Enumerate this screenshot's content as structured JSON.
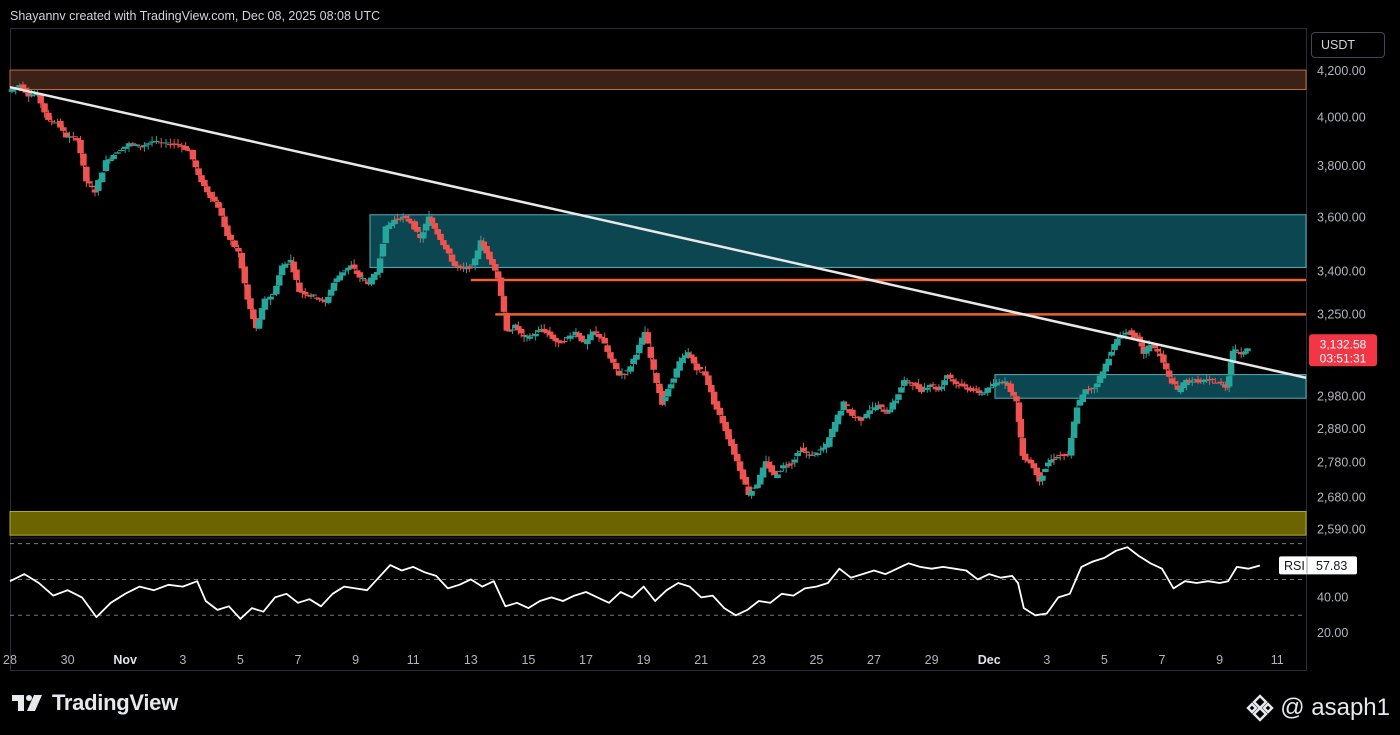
{
  "header": {
    "attribution": "Shayannv created with TradingView.com, Dec 08, 2025 08:08 UTC"
  },
  "currency": "USDT",
  "footer": {
    "brand": "TradingView",
    "handle": "@ asaph1"
  },
  "colors": {
    "bull": "#26a69a",
    "bear": "#ef5350",
    "trendline": "#e8e8e8",
    "level_line": "#f0622a",
    "zone_cyan_fill": "#0c4650",
    "zone_cyan_border": "#4fb3bf",
    "zone_brown_fill": "#3a2217",
    "zone_yellow_fill": "#6b6400",
    "price_tag": "#f23645",
    "rsi_line": "#ffffff"
  },
  "chart_data": {
    "type": "candlestick",
    "symbol_quote": "USDT",
    "y_axis": {
      "ticks": [
        "4,200.00",
        "4,000.00",
        "3,800.00",
        "3,600.00",
        "3,400.00",
        "3,250.00",
        "2,980.00",
        "2,880.00",
        "2,780.00",
        "2,680.00",
        "2,590.00"
      ],
      "tick_values": [
        4200,
        4000,
        3800,
        3600,
        3400,
        3250,
        2980,
        2880,
        2780,
        2680,
        2590
      ],
      "scale": "log",
      "range": [
        2570,
        4250
      ]
    },
    "x_axis": {
      "labels": [
        "28",
        "30",
        "Nov",
        "3",
        "5",
        "7",
        "9",
        "11",
        "13",
        "15",
        "17",
        "19",
        "21",
        "23",
        "25",
        "27",
        "29",
        "Dec",
        "3",
        "5",
        "7",
        "9",
        "11"
      ],
      "bold": [
        "Nov",
        "Dec"
      ],
      "range_days": [
        -4,
        41
      ]
    },
    "last_price": {
      "value": "3,132.58",
      "countdown": "03:51:31",
      "price": 3132.58
    },
    "zones": [
      {
        "kind": "brown",
        "low": 4120,
        "high": 4205,
        "x_from": -4,
        "x_to": 41
      },
      {
        "kind": "cyan",
        "low": 3415,
        "high": 3610,
        "x_from": 8.5,
        "x_to": 41
      },
      {
        "kind": "cyan",
        "low": 2975,
        "high": 3050,
        "x_from": 30.2,
        "x_to": 41
      },
      {
        "kind": "yellow",
        "low": 2575,
        "high": 2640,
        "x_from": -4,
        "x_to": 41
      }
    ],
    "levels": [
      {
        "price": 3370,
        "x_from": 12.0,
        "x_to": 41
      },
      {
        "price": 3250,
        "x_from": 12.85,
        "x_to": 41
      }
    ],
    "trendline": {
      "from": [
        -4,
        4130
      ],
      "to": [
        41,
        3040
      ]
    },
    "price_path": [
      [
        -4,
        4110
      ],
      [
        -3.6,
        4140
      ],
      [
        -3.3,
        4095
      ],
      [
        -3.0,
        4100
      ],
      [
        -2.6,
        3985
      ],
      [
        -2.3,
        3980
      ],
      [
        -2.0,
        3920
      ],
      [
        -1.6,
        3910
      ],
      [
        -1.3,
        3740
      ],
      [
        -1.0,
        3700
      ],
      [
        -0.6,
        3820
      ],
      [
        -0.2,
        3860
      ],
      [
        0.2,
        3890
      ],
      [
        0.6,
        3880
      ],
      [
        1.0,
        3900
      ],
      [
        1.5,
        3890
      ],
      [
        1.9,
        3890
      ],
      [
        2.3,
        3860
      ],
      [
        2.6,
        3760
      ],
      [
        2.9,
        3700
      ],
      [
        3.3,
        3640
      ],
      [
        3.6,
        3530
      ],
      [
        4.0,
        3470
      ],
      [
        4.3,
        3300
      ],
      [
        4.6,
        3200
      ],
      [
        4.9,
        3300
      ],
      [
        5.2,
        3320
      ],
      [
        5.5,
        3420
      ],
      [
        5.8,
        3440
      ],
      [
        6.1,
        3330
      ],
      [
        6.4,
        3320
      ],
      [
        6.7,
        3310
      ],
      [
        7.0,
        3290
      ],
      [
        7.3,
        3360
      ],
      [
        7.6,
        3400
      ],
      [
        7.9,
        3420
      ],
      [
        8.2,
        3380
      ],
      [
        8.5,
        3360
      ],
      [
        8.8,
        3400
      ],
      [
        9.1,
        3560
      ],
      [
        9.4,
        3590
      ],
      [
        9.7,
        3600
      ],
      [
        10.0,
        3580
      ],
      [
        10.3,
        3520
      ],
      [
        10.6,
        3600
      ],
      [
        10.9,
        3540
      ],
      [
        11.2,
        3480
      ],
      [
        11.5,
        3420
      ],
      [
        11.8,
        3410
      ],
      [
        12.1,
        3420
      ],
      [
        12.4,
        3510
      ],
      [
        12.7,
        3450
      ],
      [
        13.0,
        3380
      ],
      [
        13.3,
        3190
      ],
      [
        13.6,
        3210
      ],
      [
        13.9,
        3170
      ],
      [
        14.2,
        3180
      ],
      [
        14.5,
        3200
      ],
      [
        14.8,
        3180
      ],
      [
        15.1,
        3150
      ],
      [
        15.4,
        3170
      ],
      [
        15.7,
        3190
      ],
      [
        16.0,
        3150
      ],
      [
        16.3,
        3190
      ],
      [
        16.6,
        3170
      ],
      [
        16.9,
        3100
      ],
      [
        17.2,
        3050
      ],
      [
        17.5,
        3060
      ],
      [
        17.8,
        3120
      ],
      [
        18.1,
        3190
      ],
      [
        18.4,
        3060
      ],
      [
        18.7,
        2960
      ],
      [
        19.0,
        3020
      ],
      [
        19.3,
        3090
      ],
      [
        19.6,
        3120
      ],
      [
        19.9,
        3070
      ],
      [
        20.2,
        3050
      ],
      [
        20.5,
        2960
      ],
      [
        20.8,
        2900
      ],
      [
        21.1,
        2830
      ],
      [
        21.4,
        2760
      ],
      [
        21.7,
        2690
      ],
      [
        22.0,
        2720
      ],
      [
        22.3,
        2780
      ],
      [
        22.6,
        2740
      ],
      [
        22.9,
        2770
      ],
      [
        23.2,
        2780
      ],
      [
        23.5,
        2820
      ],
      [
        23.8,
        2800
      ],
      [
        24.1,
        2810
      ],
      [
        24.4,
        2830
      ],
      [
        24.7,
        2900
      ],
      [
        25.0,
        2960
      ],
      [
        25.3,
        2920
      ],
      [
        25.6,
        2910
      ],
      [
        25.9,
        2940
      ],
      [
        26.2,
        2950
      ],
      [
        26.5,
        2930
      ],
      [
        26.8,
        2970
      ],
      [
        27.1,
        3030
      ],
      [
        27.4,
        3020
      ],
      [
        27.7,
        3000
      ],
      [
        28.0,
        3020
      ],
      [
        28.3,
        3000
      ],
      [
        28.6,
        3050
      ],
      [
        28.9,
        3020
      ],
      [
        29.2,
        3010
      ],
      [
        29.5,
        3000
      ],
      [
        29.8,
        2990
      ],
      [
        30.1,
        3010
      ],
      [
        30.4,
        3030
      ],
      [
        30.7,
        3020
      ],
      [
        31.0,
        2960
      ],
      [
        31.2,
        2800
      ],
      [
        31.5,
        2780
      ],
      [
        31.8,
        2730
      ],
      [
        32.1,
        2780
      ],
      [
        32.4,
        2800
      ],
      [
        32.8,
        2800
      ],
      [
        33.1,
        2950
      ],
      [
        33.4,
        3000
      ],
      [
        33.7,
        3010
      ],
      [
        34.0,
        3060
      ],
      [
        34.3,
        3130
      ],
      [
        34.6,
        3180
      ],
      [
        34.9,
        3190
      ],
      [
        35.2,
        3170
      ],
      [
        35.4,
        3120
      ],
      [
        35.7,
        3150
      ],
      [
        36.0,
        3110
      ],
      [
        36.3,
        3040
      ],
      [
        36.6,
        3000
      ],
      [
        36.9,
        3030
      ],
      [
        37.2,
        3030
      ],
      [
        37.5,
        3030
      ],
      [
        37.8,
        3030
      ],
      [
        38.1,
        3020
      ],
      [
        38.3,
        3010
      ],
      [
        38.5,
        3130
      ],
      [
        38.8,
        3120
      ],
      [
        39.0,
        3133
      ]
    ],
    "rsi": {
      "label": "RSI",
      "value": "57.83",
      "value_num": 57.83,
      "ticks": [
        "60.00",
        "40.00",
        "20.00"
      ],
      "tick_values": [
        60,
        40,
        20
      ],
      "bands": [
        70,
        50,
        30
      ],
      "range": [
        14,
        72
      ],
      "series": [
        [
          -4,
          49
        ],
        [
          -3.5,
          53
        ],
        [
          -3.0,
          48
        ],
        [
          -2.5,
          41
        ],
        [
          -2.0,
          44
        ],
        [
          -1.5,
          40
        ],
        [
          -1.0,
          29
        ],
        [
          -0.5,
          37
        ],
        [
          0.0,
          42
        ],
        [
          0.5,
          46
        ],
        [
          1.0,
          44
        ],
        [
          1.5,
          47
        ],
        [
          2.0,
          46
        ],
        [
          2.5,
          49
        ],
        [
          2.8,
          38
        ],
        [
          3.2,
          33
        ],
        [
          3.6,
          35
        ],
        [
          4.0,
          28
        ],
        [
          4.4,
          34
        ],
        [
          4.8,
          32
        ],
        [
          5.2,
          40
        ],
        [
          5.6,
          42
        ],
        [
          6.0,
          37
        ],
        [
          6.4,
          39
        ],
        [
          6.8,
          35
        ],
        [
          7.2,
          42
        ],
        [
          7.6,
          46
        ],
        [
          8.0,
          45
        ],
        [
          8.4,
          44
        ],
        [
          8.8,
          51
        ],
        [
          9.2,
          58
        ],
        [
          9.6,
          55
        ],
        [
          10.0,
          57
        ],
        [
          10.4,
          54
        ],
        [
          10.8,
          52
        ],
        [
          11.2,
          45
        ],
        [
          11.6,
          47
        ],
        [
          12.0,
          50
        ],
        [
          12.4,
          46
        ],
        [
          12.8,
          49
        ],
        [
          13.2,
          35
        ],
        [
          13.6,
          37
        ],
        [
          14.0,
          34
        ],
        [
          14.4,
          38
        ],
        [
          14.8,
          40
        ],
        [
          15.2,
          38
        ],
        [
          15.6,
          41
        ],
        [
          16.0,
          43
        ],
        [
          16.4,
          40
        ],
        [
          16.8,
          37
        ],
        [
          17.2,
          43
        ],
        [
          17.6,
          40
        ],
        [
          18.0,
          46
        ],
        [
          18.4,
          38
        ],
        [
          18.8,
          44
        ],
        [
          19.2,
          48
        ],
        [
          19.6,
          46
        ],
        [
          20.0,
          40
        ],
        [
          20.4,
          41
        ],
        [
          20.8,
          34
        ],
        [
          21.2,
          30
        ],
        [
          21.6,
          33
        ],
        [
          22.0,
          38
        ],
        [
          22.4,
          37
        ],
        [
          22.8,
          42
        ],
        [
          23.2,
          41
        ],
        [
          23.6,
          45
        ],
        [
          24.0,
          46
        ],
        [
          24.4,
          48
        ],
        [
          24.8,
          56
        ],
        [
          25.2,
          51
        ],
        [
          25.6,
          53
        ],
        [
          26.0,
          55
        ],
        [
          26.4,
          53
        ],
        [
          26.8,
          56
        ],
        [
          27.2,
          59
        ],
        [
          27.6,
          57
        ],
        [
          28.0,
          56
        ],
        [
          28.4,
          57
        ],
        [
          28.8,
          56
        ],
        [
          29.2,
          55
        ],
        [
          29.6,
          50
        ],
        [
          30.0,
          53
        ],
        [
          30.4,
          51
        ],
        [
          30.8,
          52
        ],
        [
          31.0,
          48
        ],
        [
          31.2,
          34
        ],
        [
          31.6,
          30
        ],
        [
          32.0,
          31
        ],
        [
          32.4,
          40
        ],
        [
          32.8,
          42
        ],
        [
          33.2,
          57
        ],
        [
          33.6,
          60
        ],
        [
          34.0,
          62
        ],
        [
          34.4,
          66
        ],
        [
          34.8,
          68
        ],
        [
          35.2,
          63
        ],
        [
          35.6,
          59
        ],
        [
          36.0,
          56
        ],
        [
          36.4,
          45
        ],
        [
          36.8,
          49
        ],
        [
          37.2,
          48
        ],
        [
          37.6,
          49
        ],
        [
          38.0,
          48
        ],
        [
          38.3,
          49
        ],
        [
          38.6,
          57
        ],
        [
          39.0,
          56
        ],
        [
          39.4,
          57.8
        ]
      ]
    }
  }
}
